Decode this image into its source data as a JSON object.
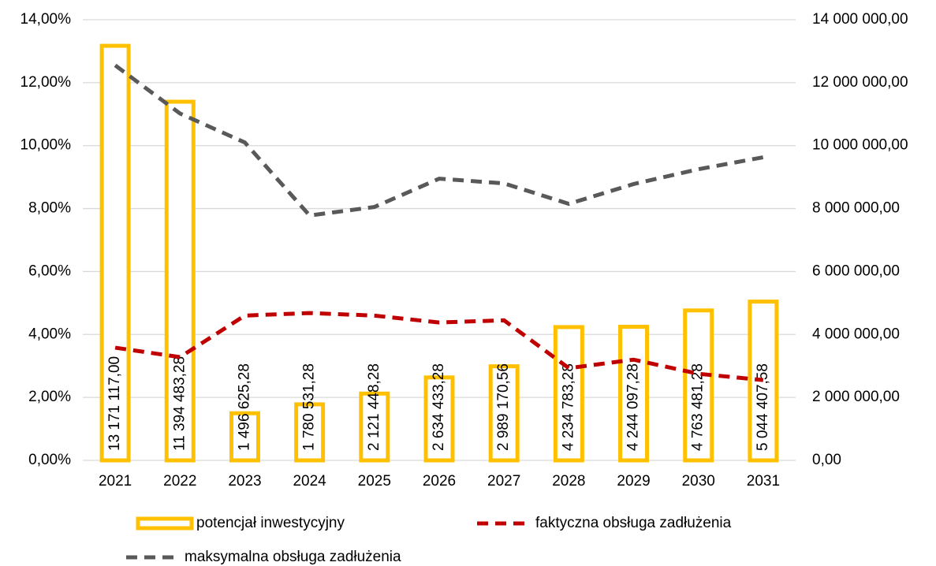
{
  "chart_data": {
    "type": "combo",
    "categories": [
      "2021",
      "2022",
      "2023",
      "2024",
      "2025",
      "2026",
      "2027",
      "2028",
      "2029",
      "2030",
      "2031"
    ],
    "series": [
      {
        "name": "potencjał inwestycyjny",
        "type": "bar",
        "axis": "y2",
        "color": "#ffc000",
        "values": [
          13171117.0,
          11394483.28,
          1496625.28,
          1780531.28,
          2121448.28,
          2634433.28,
          2989170.56,
          4234783.28,
          4244097.28,
          4763481.28,
          5044407.58
        ],
        "value_labels": [
          "13 171 117,00",
          "11 394 483,28",
          "1 496 625,28",
          "1 780 531,28",
          "2 121 448,28",
          "2 634 433,28",
          "2 989 170,56",
          "4 234 783,28",
          "4 244 097,28",
          "4 763 481,28",
          "5 044 407,58"
        ]
      },
      {
        "name": "faktyczna obsługa zadłużenia",
        "type": "line",
        "axis": "y",
        "color": "#c00000",
        "values": [
          3.58,
          3.28,
          4.6,
          4.68,
          4.6,
          4.38,
          4.45,
          2.93,
          3.2,
          2.75,
          2.55
        ]
      },
      {
        "name": "maksymalna obsługa zadłużenia",
        "type": "line",
        "axis": "y",
        "color": "#595959",
        "values": [
          12.55,
          11.02,
          10.1,
          7.78,
          8.05,
          8.95,
          8.8,
          8.15,
          8.78,
          9.25,
          9.63
        ]
      }
    ],
    "ylim": [
      0,
      14
    ],
    "yticks": [
      {
        "value": 0,
        "label": "0,00%"
      },
      {
        "value": 2,
        "label": "2,00%"
      },
      {
        "value": 4,
        "label": "4,00%"
      },
      {
        "value": 6,
        "label": "6,00%"
      },
      {
        "value": 8,
        "label": "8,00%"
      },
      {
        "value": 10,
        "label": "10,00%"
      },
      {
        "value": 12,
        "label": "12,00%"
      },
      {
        "value": 14,
        "label": "14,00%"
      }
    ],
    "y2lim": [
      0,
      14000000
    ],
    "y2ticks": [
      {
        "value": 0,
        "label": "0,00"
      },
      {
        "value": 2000000,
        "label": "2 000 000,00"
      },
      {
        "value": 4000000,
        "label": "4 000 000,00"
      },
      {
        "value": 6000000,
        "label": "6 000 000,00"
      },
      {
        "value": 8000000,
        "label": "8 000 000,00"
      },
      {
        "value": 10000000,
        "label": "10 000 000,00"
      },
      {
        "value": 12000000,
        "label": "12 000 000,00"
      },
      {
        "value": 14000000,
        "label": "14 000 000,00"
      }
    ],
    "grid": true,
    "legend": "bottom"
  }
}
